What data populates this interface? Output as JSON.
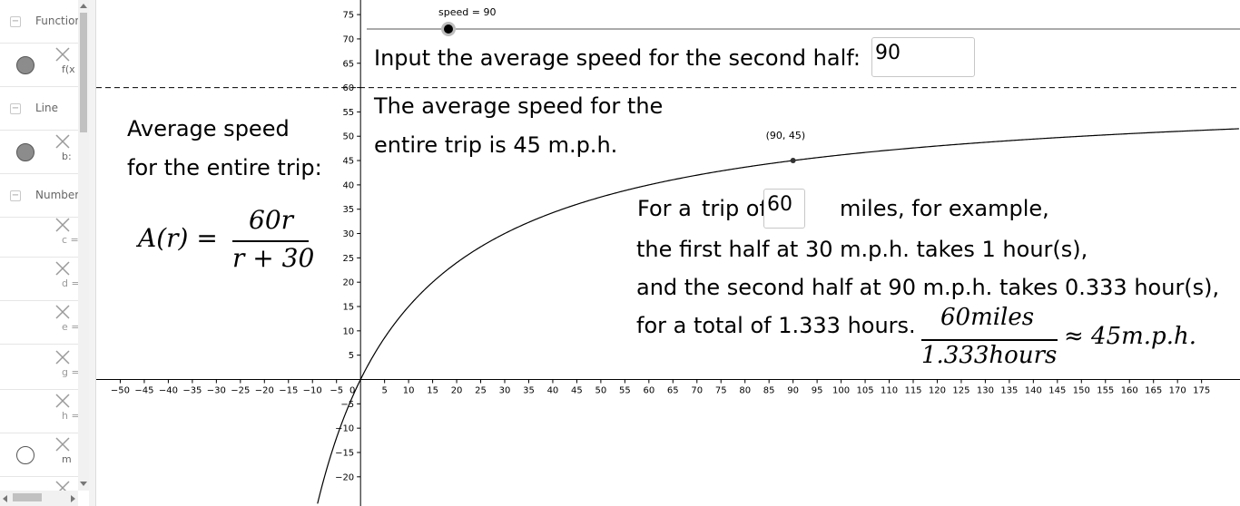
{
  "algebra_view": {
    "categories": [
      {
        "label": "Function",
        "items": [
          {
            "label": "f(x",
            "visible": true
          }
        ]
      },
      {
        "label": "Line",
        "items": [
          {
            "label": "b:",
            "visible": true
          }
        ]
      },
      {
        "label": "Number",
        "items": [
          {
            "label": "c ="
          },
          {
            "label": "d ="
          },
          {
            "label": "e ="
          },
          {
            "label": "g ="
          },
          {
            "label": "h ="
          },
          {
            "label": "m",
            "visible": false
          },
          {
            "label": ""
          }
        ]
      }
    ],
    "collapse_symbol": "−"
  },
  "slider": {
    "label": "speed = 90",
    "value": 90
  },
  "input_prompt": "Input the average speed for the second half:",
  "input_value": "90",
  "result_line1": "The average speed for the",
  "result_line2": "entire trip is 45 m.p.h.",
  "avg_label_line1": "Average speed",
  "avg_label_line2": "for the entire trip:",
  "formula": {
    "lhs": "A(r) =",
    "numerator": "60r",
    "denominator": "r + 30"
  },
  "point_label": "(90, 45)",
  "example": {
    "prefix": "For a",
    "trip_of": "trip of",
    "miles_value": "60",
    "suffix": "miles, for example,",
    "line2": "the first half at 30 m.p.h. takes 1 hour(s),",
    "line3": "and the second half at 90 m.p.h. takes 0.333 hour(s),",
    "line4": "for a total of 1.333 hours.",
    "fraction_num": "60miles",
    "fraction_den": "1.333hours",
    "approx": "≈ 45m.p.h."
  },
  "chart_data": {
    "type": "line",
    "function": "A(r) = 60r/(r+30)",
    "x_ticks": [
      -50,
      -45,
      -40,
      -35,
      -30,
      -25,
      -20,
      -15,
      -10,
      -5,
      0,
      5,
      10,
      15,
      20,
      25,
      30,
      35,
      40,
      45,
      50,
      55,
      60,
      65,
      70,
      75,
      80,
      85,
      90,
      95,
      100,
      105,
      110,
      115,
      120,
      125,
      130,
      135,
      140,
      145,
      150,
      155,
      160,
      165,
      170,
      175
    ],
    "y_ticks": [
      -20,
      -15,
      -10,
      -5,
      5,
      10,
      15,
      20,
      25,
      30,
      35,
      40,
      45,
      50,
      55,
      60,
      65,
      70,
      75
    ],
    "xlim": [
      -55,
      183
    ],
    "ylim": [
      -26,
      78
    ],
    "asymptote_y": 60,
    "point": {
      "x": 90,
      "y": 45
    },
    "line_color": "#000000"
  },
  "icons": {
    "delete": "delete-x-icon",
    "collapse": "collapse-minus-icon"
  }
}
